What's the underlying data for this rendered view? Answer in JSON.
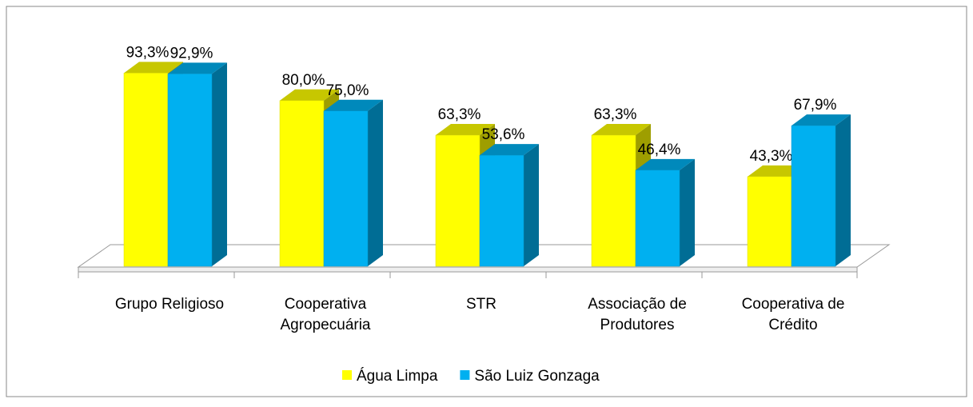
{
  "chart_data": {
    "type": "bar3d",
    "categories": [
      "Grupo Religioso",
      "Cooperativa\nAgropecuária",
      "STR",
      "Associação de\nProdutores",
      "Cooperativa de\nCrédito"
    ],
    "series": [
      {
        "name": "Água Limpa",
        "color": "#ffff00",
        "values": [
          93.3,
          80.0,
          63.3,
          63.3,
          43.3
        ],
        "value_labels": [
          "93,3%",
          "80,0%",
          "63,3%",
          "63,3%",
          "43,3%"
        ]
      },
      {
        "name": "São Luiz Gonzaga",
        "color": "#00b0f0",
        "values": [
          92.9,
          75.0,
          53.6,
          46.4,
          67.9
        ],
        "value_labels": [
          "92,9%",
          "75,0%",
          "53,6%",
          "46,4%",
          "67,9%"
        ]
      }
    ],
    "legend": "bottom"
  }
}
